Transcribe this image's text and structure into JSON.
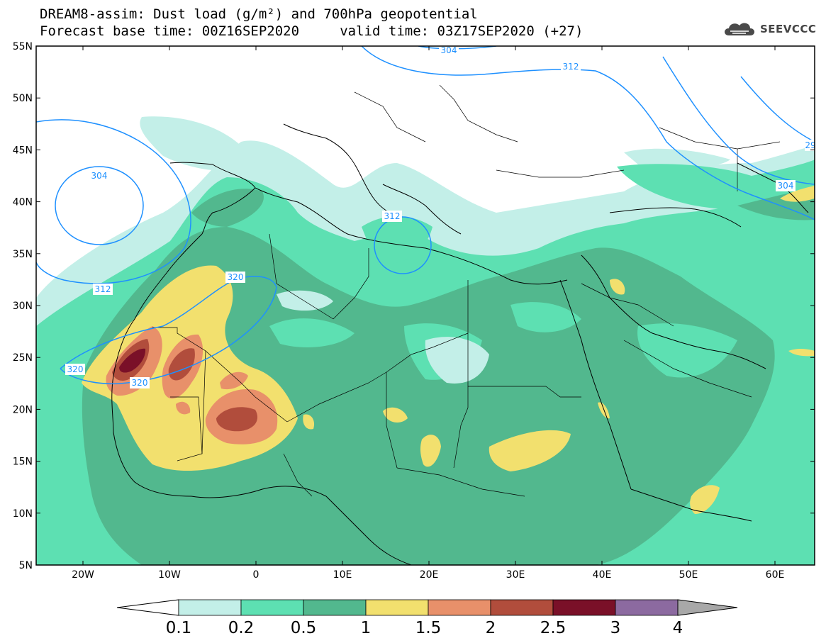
{
  "header": {
    "title_line1": "DREAM8-assim: Dust load (g/m²) and 700hPa geopotential",
    "title_line2": "Forecast base time: 00Z16SEP2020     valid time: 03Z17SEP2020 (+27)",
    "logo_text": "SEEVCCC",
    "logo_icon": "cloud-icon"
  },
  "map": {
    "lat_labels": [
      "55N",
      "50N",
      "45N",
      "40N",
      "35N",
      "30N",
      "25N",
      "20N",
      "15N",
      "10N",
      "5N"
    ],
    "lon_labels": [
      "20W",
      "10W",
      "0",
      "10E",
      "20E",
      "30E",
      "40E",
      "50E",
      "60E"
    ],
    "contour_labels": [
      "304",
      "304",
      "312",
      "312",
      "320",
      "320",
      "320",
      "312",
      "304",
      "29"
    ]
  },
  "colorbar": {
    "labels": [
      "0.1",
      "0.2",
      "0.5",
      "1",
      "1.5",
      "2",
      "2.5",
      "3",
      "4"
    ],
    "colors": {
      "under": "#ffffff",
      "bins": [
        "#c3efe8",
        "#5de0b2",
        "#52b88e",
        "#f2e06e",
        "#e8906a",
        "#b14d3c",
        "#7a1028",
        "#8c6aa0"
      ],
      "over": "#a8a8a8"
    }
  }
}
